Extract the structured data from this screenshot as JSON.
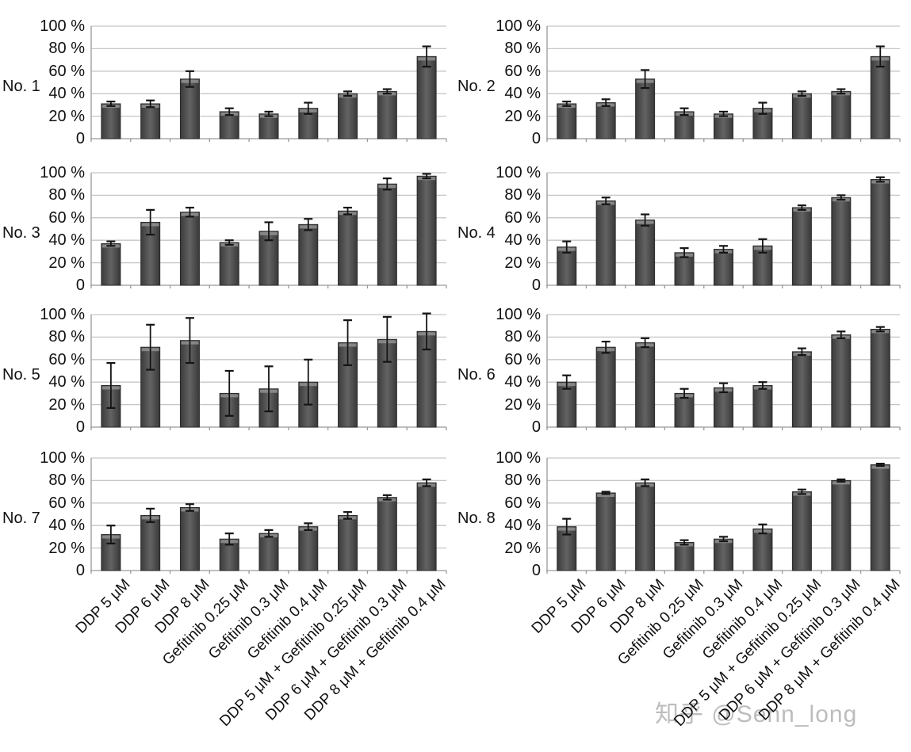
{
  "watermark": "知乎 @Senn_long",
  "colors": {
    "bar_fill_dark": "#3b3b3b",
    "bar_fill_mid": "#636363",
    "bar_edge": "#2b2b2b",
    "bar_top_cap": "#919191",
    "grid": "#c6c6c6",
    "axis": "#999999",
    "error_bar": "#141414",
    "text": "#111111",
    "watermark": "#bdbdbd"
  },
  "chart_data": {
    "type": "bar",
    "ylim": [
      0,
      100
    ],
    "grid": true,
    "legend": "none",
    "ylabel": "",
    "xlabel": "",
    "y_ticks": [
      100,
      80,
      60,
      40,
      20,
      0
    ],
    "y_tick_labels": [
      "100 %",
      "80 %",
      "60 %",
      "40 %",
      "20 %",
      "0"
    ],
    "categories": [
      "DDP 5 μM",
      "DDP 6 μM",
      "DDP 8 μM",
      "Gefitinib 0.25 μM",
      "Gefitinib 0.3 μM",
      "Gefitinib 0.4 μM",
      "DDP 5 μM + Gefitinib 0.25 μM",
      "DDP 6 μM + Gefitinib 0.3 μM",
      "DDP 8 μM + Gefitinib 0.4 μM"
    ],
    "panels": [
      {
        "label": "No. 1",
        "values": [
          31,
          31,
          53,
          24,
          22,
          27,
          40,
          42,
          73
        ],
        "errors": [
          2,
          3,
          7,
          3,
          2,
          5,
          2,
          2,
          9
        ]
      },
      {
        "label": "No. 2",
        "values": [
          31,
          32,
          53,
          24,
          22,
          27,
          40,
          42,
          73
        ],
        "errors": [
          2,
          3,
          8,
          3,
          2,
          5,
          2,
          2,
          9
        ]
      },
      {
        "label": "No. 3",
        "values": [
          37,
          56,
          65,
          38,
          48,
          54,
          66,
          90,
          97
        ],
        "errors": [
          2,
          11,
          4,
          2,
          8,
          5,
          3,
          5,
          2
        ]
      },
      {
        "label": "No. 4",
        "values": [
          34,
          75,
          58,
          29,
          32,
          35,
          69,
          78,
          94
        ],
        "errors": [
          5,
          3,
          5,
          4,
          3,
          6,
          2,
          2,
          2
        ]
      },
      {
        "label": "No. 5",
        "values": [
          37,
          71,
          77,
          30,
          34,
          40,
          75,
          78,
          85
        ],
        "errors": [
          20,
          20,
          20,
          20,
          20,
          20,
          20,
          20,
          16
        ]
      },
      {
        "label": "No. 6",
        "values": [
          40,
          71,
          75,
          30,
          35,
          37,
          67,
          82,
          87
        ],
        "errors": [
          6,
          5,
          4,
          4,
          4,
          3,
          3,
          3,
          2
        ]
      },
      {
        "label": "No. 7",
        "values": [
          32,
          49,
          56,
          28,
          33,
          39,
          49,
          65,
          78
        ],
        "errors": [
          8,
          6,
          3,
          5,
          3,
          3,
          3,
          2,
          3
        ]
      },
      {
        "label": "No. 8",
        "values": [
          39,
          69,
          78,
          25,
          28,
          37,
          70,
          80,
          94
        ],
        "errors": [
          7,
          1,
          3,
          2,
          2,
          4,
          2,
          1,
          1
        ]
      }
    ]
  }
}
